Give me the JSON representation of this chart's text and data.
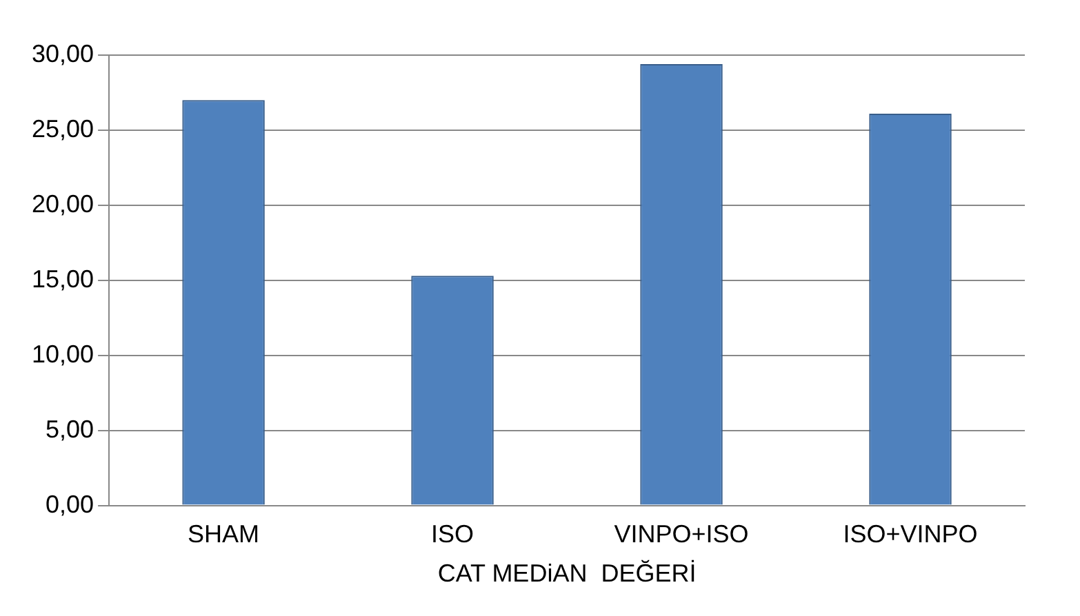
{
  "chart_data": {
    "type": "bar",
    "xlabel": "CAT MEDiAN  DEĞERİ",
    "categories": [
      "SHAM",
      "ISO",
      "VINPO+ISO",
      "ISO+VINPO"
    ],
    "values": [
      27.0,
      15.3,
      29.4,
      26.1
    ],
    "color": "#4f81bd",
    "ylim": [
      0,
      30
    ],
    "yticks": [
      {
        "value": 0,
        "label": "0,00"
      },
      {
        "value": 5,
        "label": "5,00"
      },
      {
        "value": 10,
        "label": "10,00"
      },
      {
        "value": 15,
        "label": "15,00"
      },
      {
        "value": 20,
        "label": "20,00"
      },
      {
        "value": 25,
        "label": "25,00"
      },
      {
        "value": 30,
        "label": "30,00"
      }
    ],
    "grid": "y",
    "legend": false
  }
}
